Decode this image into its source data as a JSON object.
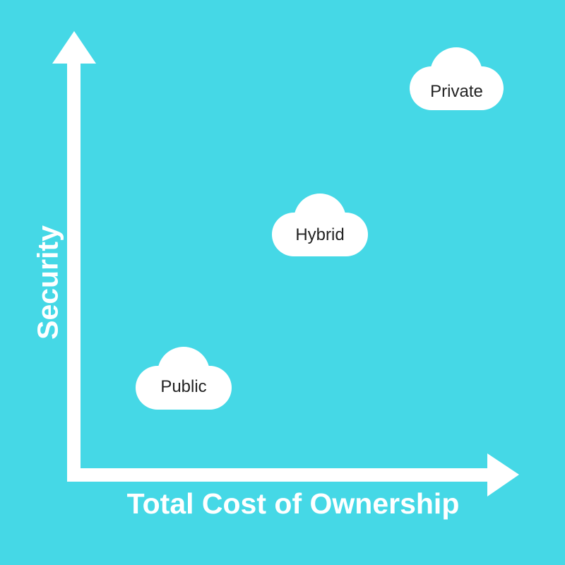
{
  "colors": {
    "background": "#45d8e6",
    "axis": "#ffffff",
    "cloud_fill": "#ffffff",
    "cloud_text": "#222222"
  },
  "axes": {
    "x_label": "Total Cost of Ownership",
    "y_label": "Security"
  },
  "clouds": {
    "public": "Public",
    "hybrid": "Hybrid",
    "private": "Private"
  }
}
